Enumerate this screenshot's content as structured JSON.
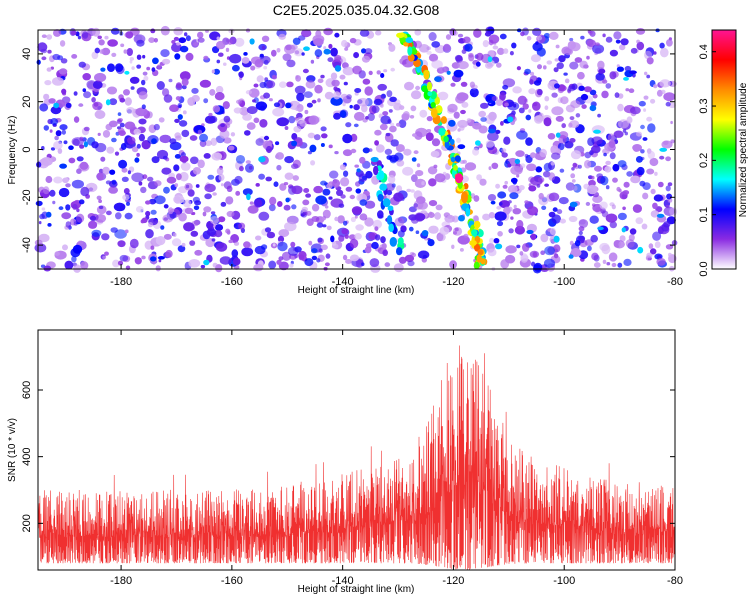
{
  "figure": {
    "title": "C2E5.2025.035.04.32.G08"
  },
  "chart_data": [
    {
      "type": "heatmap",
      "xlabel": "Height of straight line (km)",
      "ylabel": "Frequency (Hz)",
      "xlim": [
        -195,
        -80
      ],
      "ylim": [
        -50,
        50
      ],
      "x_ticks": [
        -180,
        -160,
        -140,
        -120,
        -100,
        -80
      ],
      "y_ticks": [
        -40,
        -20,
        0,
        20,
        40
      ],
      "colorbar": {
        "label": "Normalized spectral amplitude",
        "range": [
          0.0,
          0.44
        ],
        "ticks": [
          0.0,
          0.1,
          0.2,
          0.3,
          0.4
        ],
        "colormap": [
          "#ffffff",
          "#8a2be2",
          "#0000ff",
          "#00ffff",
          "#00ff00",
          "#ffff00",
          "#ff8c00",
          "#ff0000",
          "#ff1493"
        ]
      },
      "background_amplitude": [
        0.0,
        0.12
      ],
      "ridge": {
        "description_values": "bright ridge along straight line",
        "points": [
          {
            "x": -129,
            "y": 47
          },
          {
            "x": -126,
            "y": 35
          },
          {
            "x": -124,
            "y": 22
          },
          {
            "x": -121,
            "y": 5
          },
          {
            "x": -119,
            "y": -12
          },
          {
            "x": -117,
            "y": -25
          },
          {
            "x": -116,
            "y": -35
          },
          {
            "x": -115,
            "y": -48
          }
        ],
        "peak_amplitude": 0.44
      },
      "second_ridge": {
        "points": [
          {
            "x": -134,
            "y": -5
          },
          {
            "x": -132,
            "y": -25
          },
          {
            "x": -130,
            "y": -40
          },
          {
            "x": -129,
            "y": -48
          }
        ],
        "peak_amplitude": 0.25
      },
      "quiet_band": {
        "x": [
          -128,
          -118
        ]
      },
      "grid": false
    },
    {
      "type": "line",
      "xlabel": "Height of straight line (km)",
      "ylabel": "SNR (10 * v/v)",
      "xlim": [
        -195,
        -80
      ],
      "ylim": [
        60,
        780
      ],
      "x_ticks": [
        -180,
        -160,
        -140,
        -120,
        -100,
        -80
      ],
      "y_ticks": [
        200,
        400,
        600
      ],
      "series": [
        {
          "color": "#f03030",
          "baseline_range": [
            80,
            300
          ],
          "peak": {
            "x": -118,
            "value": 780
          },
          "secondary_peaks": [
            {
              "x": -120,
              "value": 660
            },
            {
              "x": -115,
              "value": 750
            },
            {
              "x": -124,
              "value": 580
            }
          ]
        }
      ],
      "grid": false
    }
  ]
}
